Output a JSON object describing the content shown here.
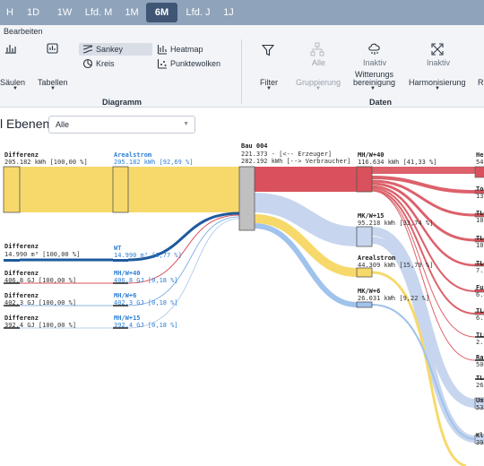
{
  "timebar": {
    "buttons": [
      {
        "label": "H"
      },
      {
        "label": "1D"
      },
      {
        "label": "1W"
      },
      {
        "label": "Lfd. M"
      },
      {
        "label": "1M"
      },
      {
        "label": "6M",
        "active": true
      },
      {
        "label": "Lfd. J"
      },
      {
        "label": "1J"
      }
    ]
  },
  "ribbon": {
    "title": "Bearbeiten",
    "diagramm": {
      "group_label": "Diagramm",
      "saeulen": "Säulen",
      "tabellen": "Tabellen",
      "sankey": "Sankey",
      "kreis": "Kreis",
      "heatmap": "Heatmap",
      "punktewolken": "Punktewolken"
    },
    "daten": {
      "group_label": "Daten",
      "filter": "Filter",
      "alle": "Alle",
      "gruppierung": "Gruppierung",
      "inaktiv1": "Inaktiv",
      "witterung1": "Witterungs",
      "witterung2": "bereinigung",
      "inaktiv2": "Inaktiv",
      "harmonisierung": "Harmonisierung",
      "cut": "R"
    }
  },
  "filterbar": {
    "ebenen_label": "l Ebenen",
    "dropdown_value": "Alle"
  },
  "sankey": {
    "left_nodes": [
      {
        "label": "Differenz",
        "value": "205.182 kWh [100,00 %]"
      },
      {
        "label": "Differenz",
        "value": "14.990 m³ [100,00 %]"
      },
      {
        "label": "Differenz",
        "value": "406,8 GJ [100,00 %]"
      },
      {
        "label": "Differenz",
        "value": "402,3 GJ [100,00 %]"
      },
      {
        "label": "Differenz",
        "value": "392,4 GJ [100,00 %]"
      }
    ],
    "mid_nodes": [
      {
        "label": "Arealstrom",
        "value": "205.182 kWh [92,69 %]"
      },
      {
        "label": "WT",
        "value": "14.990 m³ [6,77 %]"
      },
      {
        "label": "MH/W+40",
        "value": "406,8 GJ [0,18 %]"
      },
      {
        "label": "MH/W+6",
        "value": "402,3 GJ [0,18 %]"
      },
      {
        "label": "MH/W+15",
        "value": "392,4 GJ [0,18 %]"
      }
    ],
    "center_node": {
      "label": "Bau 004",
      "line1": "221.373 - [<-- Erzeuger]",
      "line2": "282.192 kWh [--> Verbraucher]"
    },
    "right_nodes": [
      {
        "label": "MH/W+40",
        "value": "116.634 kWh [41,33 %]"
      },
      {
        "label": "MK/W+15",
        "value": "95.218 kWh [33,74 %]"
      },
      {
        "label": "Arealstrom",
        "value": "44.309 kWh [15,70 %]"
      },
      {
        "label": "MK/W+6",
        "value": "26.031 kWh [9,22 %]"
      }
    ],
    "far_right": [
      {
        "label": "He",
        "value": "54."
      },
      {
        "label": "Tor",
        "value": "13."
      },
      {
        "label": "TL0",
        "value": "10."
      },
      {
        "label": "TL0",
        "value": "10."
      },
      {
        "label": "TL0",
        "value": "7.5"
      },
      {
        "label": "Fu",
        "value": "6.8"
      },
      {
        "label": "TL0",
        "value": "6.7"
      },
      {
        "label": "TL0",
        "value": "2.1"
      },
      {
        "label": "Ra",
        "value": "500"
      },
      {
        "label": "TL0",
        "value": "261"
      },
      {
        "label": "Um",
        "value": "53."
      },
      {
        "label": "Kl",
        "value": "39."
      }
    ],
    "colors": {
      "yellow": "#f7d96b",
      "red": "#d9515c",
      "lightblue": "#c7d6ee",
      "darkblue": "#1f5a9e",
      "gray": "#c0c0c0"
    }
  }
}
